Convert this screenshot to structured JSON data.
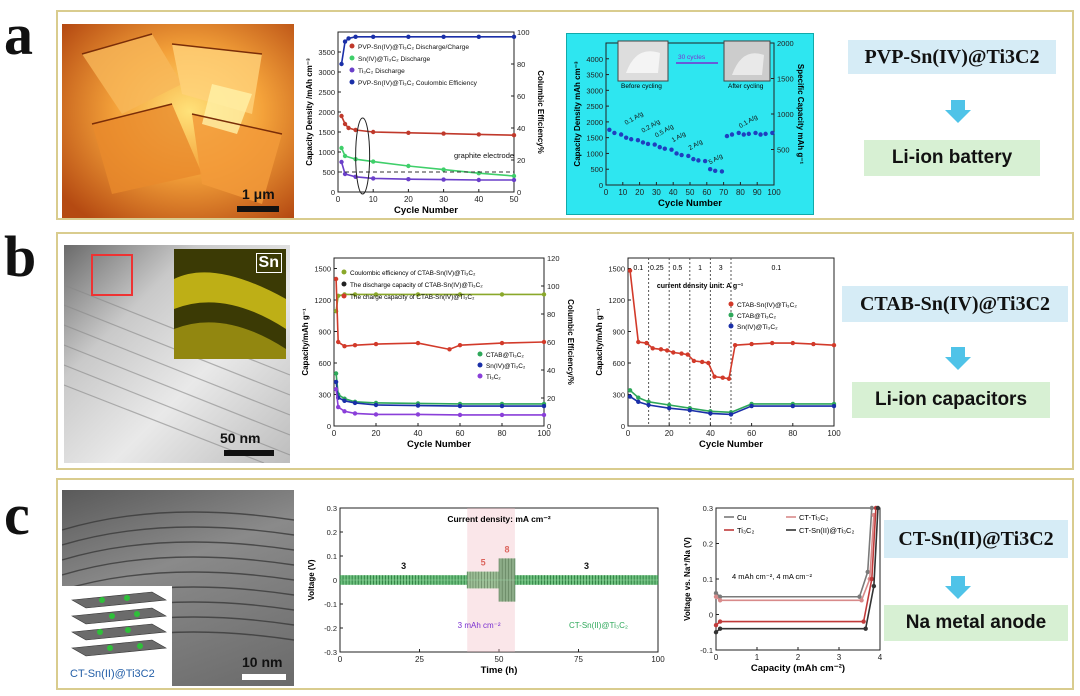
{
  "panel_a": {
    "label": "a",
    "scalebar": "1 μm",
    "caption": "PVP-Sn(IV)@Ti3C2",
    "application": "Li-ion battery"
  },
  "panel_b": {
    "label": "b",
    "scalebar": "50 nm",
    "eds_label": "Sn",
    "caption": "CTAB-Sn(IV)@Ti3C2",
    "application": "Li-ion capacitors"
  },
  "panel_c": {
    "label": "c",
    "scalebar": "10 nm",
    "schematic_label": "CT-Sn(II)@Ti3C2",
    "caption": "CT-Sn(II)@Ti3C2",
    "application": "Na metal anode"
  },
  "colors": {
    "frame": "#d9cc8e",
    "caption_bg": "#d6ecf6",
    "application_bg": "#d7f0d3",
    "inset_bg": "#2ee6f0"
  },
  "chart_data": [
    {
      "id": "a1",
      "type": "line",
      "xlabel": "Cycle Number",
      "ylabel": "Capacity Density /mAh cm⁻³",
      "y2label": "Columbic Efficiency%",
      "xlim": [
        0,
        50
      ],
      "ylim": [
        0,
        4000
      ],
      "y2lim": [
        0,
        100
      ],
      "xticks": [
        0,
        10,
        20,
        30,
        40,
        50
      ],
      "yticks": [
        0,
        500,
        1000,
        1500,
        2000,
        2500,
        3000,
        3500
      ],
      "y2ticks": [
        0,
        20,
        40,
        60,
        80,
        100
      ],
      "legend": [
        "PVP-Sn(IV)@Ti₃C₂ Discharge/Charge",
        "Sn(IV)@Ti₃C₂ Discharge",
        "Ti₃C₂ Discharge",
        "PVP-Sn(IV)@Ti₃C₂ Coulombic Efficiency"
      ],
      "annotations": [
        "graphite electrode"
      ],
      "series": [
        {
          "name": "PVP-Sn(IV)@Ti₃C₂ Coulombic Efficiency",
          "axis": "y2",
          "color": "#1a2fa8",
          "x": [
            1,
            2,
            3,
            5,
            10,
            20,
            30,
            40,
            50
          ],
          "y": [
            80,
            94,
            96,
            97,
            97,
            97,
            97,
            97,
            97
          ]
        },
        {
          "name": "PVP-Sn(IV)@Ti₃C₂ Discharge/Charge",
          "color": "#c0392b",
          "x": [
            1,
            2,
            3,
            5,
            10,
            20,
            30,
            40,
            50
          ],
          "y": [
            1900,
            1700,
            1600,
            1550,
            1500,
            1480,
            1460,
            1440,
            1420
          ]
        },
        {
          "name": "Sn(IV)@Ti₃C₂ Discharge",
          "color": "#3fcf6a",
          "x": [
            1,
            2,
            5,
            10,
            20,
            30,
            40,
            50
          ],
          "y": [
            1100,
            900,
            820,
            760,
            650,
            560,
            470,
            400
          ]
        },
        {
          "name": "Ti₃C₂ Discharge",
          "color": "#6a3fc9",
          "x": [
            1,
            2,
            5,
            10,
            20,
            30,
            40,
            50
          ],
          "y": [
            750,
            450,
            380,
            340,
            320,
            310,
            300,
            300
          ]
        }
      ],
      "reference": {
        "name": "graphite electrode",
        "y": 500
      }
    },
    {
      "id": "a2",
      "type": "scatter",
      "xlabel": "Cycle Number",
      "ylabel": "Capacity Density mAh cm⁻³",
      "y2label": "Specific Capacity mAh g⁻¹",
      "xlim": [
        0,
        100
      ],
      "ylim": [
        0,
        4500
      ],
      "y2lim": [
        0,
        2000
      ],
      "xticks": [
        0,
        10,
        20,
        30,
        40,
        50,
        60,
        70,
        80,
        90,
        100
      ],
      "yticks": [
        0,
        500,
        1000,
        1500,
        2000,
        2500,
        3000,
        3500,
        4000
      ],
      "y2ticks": [
        500,
        1000,
        1500,
        2000
      ],
      "rate_labels": [
        "0.1 A/g",
        "0.2 A/g",
        "0.5 A/g",
        "1 A/g",
        "2 A/g",
        "5 A/g",
        "0.1 A/g"
      ],
      "inset_labels": [
        "Before cycling",
        "After cycling",
        "30 cycles"
      ],
      "series": [
        {
          "name": "rate",
          "color": "#1f3fbf",
          "x": [
            2,
            5,
            9,
            12,
            15,
            19,
            22,
            25,
            29,
            32,
            35,
            39,
            42,
            45,
            49,
            52,
            55,
            59,
            62,
            65,
            69,
            72,
            75,
            79,
            82,
            85,
            89,
            92,
            95,
            99
          ],
          "y": [
            1750,
            1650,
            1600,
            1500,
            1450,
            1420,
            1350,
            1300,
            1280,
            1200,
            1150,
            1120,
            1000,
            950,
            920,
            820,
            780,
            760,
            500,
            450,
            430,
            1550,
            1600,
            1650,
            1600,
            1620,
            1650,
            1600,
            1620,
            1650
          ]
        }
      ]
    },
    {
      "id": "b1",
      "type": "line",
      "xlabel": "Cycle Number",
      "ylabel": "Capacity/mAh g⁻¹",
      "y2label": "Columbic Efficiency/%",
      "xlim": [
        0,
        100
      ],
      "ylim": [
        0,
        1600
      ],
      "y2lim": [
        0,
        120
      ],
      "xticks": [
        0,
        20,
        40,
        60,
        80,
        100
      ],
      "yticks": [
        0,
        300,
        600,
        900,
        1200,
        1500
      ],
      "y2ticks": [
        0,
        20,
        40,
        60,
        80,
        100,
        120
      ],
      "legend_top": [
        "Coulombic efficiency of CTAB-Sn(IV)@Ti₃C₂",
        "The discharge capacity of CTAB-Sn(IV)@Ti₃C₂",
        "The charge capacity of CTAB-Sn(IV)@Ti₃C₂"
      ],
      "legend_bottom": [
        "CTAB@Ti₃C₂",
        "Sn(IV)@Ti₃C₂",
        "Ti₃C₂"
      ],
      "series": [
        {
          "name": "Coulombic efficiency of CTAB-Sn(IV)@Ti₃C₂",
          "axis": "y2",
          "color": "#8aa82a",
          "x": [
            1,
            2,
            5,
            10,
            20,
            40,
            60,
            80,
            100
          ],
          "y": [
            82,
            93,
            94,
            94,
            94,
            94,
            94,
            94,
            94
          ]
        },
        {
          "name": "The discharge capacity of CTAB-Sn(IV)@Ti₃C₂",
          "color": "#d23a2a",
          "x": [
            1,
            2,
            5,
            10,
            20,
            40,
            55,
            60,
            80,
            100
          ],
          "y": [
            1400,
            800,
            760,
            770,
            780,
            790,
            730,
            770,
            790,
            800
          ]
        },
        {
          "name": "CTAB@Ti₃C₂",
          "color": "#2ea85a",
          "x": [
            1,
            2,
            5,
            10,
            20,
            40,
            60,
            80,
            100
          ],
          "y": [
            500,
            300,
            260,
            230,
            220,
            215,
            210,
            210,
            210
          ]
        },
        {
          "name": "Sn(IV)@Ti₃C₂",
          "color": "#1a2fa8",
          "x": [
            1,
            2,
            5,
            10,
            20,
            40,
            60,
            80,
            100
          ],
          "y": [
            420,
            270,
            240,
            220,
            200,
            195,
            190,
            190,
            190
          ]
        },
        {
          "name": "Ti₃C₂",
          "color": "#8a3fd9",
          "x": [
            1,
            2,
            5,
            10,
            20,
            40,
            60,
            80,
            100
          ],
          "y": [
            350,
            180,
            140,
            120,
            110,
            110,
            105,
            105,
            105
          ]
        }
      ]
    },
    {
      "id": "b2",
      "type": "scatter",
      "xlabel": "Cycle Number",
      "ylabel": "Capacity/mAh g⁻¹",
      "xlim": [
        0,
        100
      ],
      "ylim": [
        0,
        1600
      ],
      "xticks": [
        0,
        20,
        40,
        60,
        80,
        100
      ],
      "yticks": [
        0,
        300,
        600,
        900,
        1200,
        1500
      ],
      "rate_labels": [
        "0.1",
        "0.25",
        "0.5",
        "1",
        "3",
        "0.1"
      ],
      "unit_note": "current density unit: A g⁻¹",
      "legend": [
        "CTAB-Sn(IV)@Ti₃C₂",
        "CTAB@Ti₃C₂",
        "Sn(IV)@Ti₃C₂"
      ],
      "series": [
        {
          "name": "CTAB-Sn(IV)@Ti₃C₂",
          "color": "#d23a2a",
          "x": [
            1,
            5,
            9,
            12,
            16,
            19,
            22,
            26,
            29,
            32,
            36,
            39,
            42,
            46,
            49,
            52,
            60,
            70,
            80,
            90,
            100
          ],
          "y": [
            1480,
            800,
            790,
            740,
            730,
            720,
            700,
            690,
            680,
            620,
            610,
            600,
            470,
            460,
            450,
            770,
            780,
            790,
            790,
            780,
            770
          ]
        },
        {
          "name": "CTAB@Ti₃C₂",
          "color": "#2ea85a",
          "x": [
            1,
            5,
            10,
            20,
            30,
            40,
            50,
            60,
            80,
            100
          ],
          "y": [
            340,
            270,
            230,
            200,
            170,
            140,
            130,
            210,
            210,
            210
          ]
        },
        {
          "name": "Sn(IV)@Ti₃C₂",
          "color": "#1a2fa8",
          "x": [
            1,
            5,
            10,
            20,
            30,
            40,
            50,
            60,
            80,
            100
          ],
          "y": [
            280,
            230,
            200,
            170,
            150,
            120,
            110,
            190,
            190,
            190
          ]
        }
      ]
    },
    {
      "id": "c1",
      "type": "line",
      "xlabel": "Time (h)",
      "ylabel": "Voltage (V)",
      "xlim": [
        0,
        100
      ],
      "ylim": [
        -0.3,
        0.3
      ],
      "xticks": [
        0,
        25,
        50,
        75,
        100
      ],
      "yticks": [
        -0.3,
        -0.2,
        -0.1,
        0.0,
        0.1,
        0.2,
        0.3
      ],
      "title": "Current density: mA cm⁻²",
      "annotations": [
        "3 mAh cm⁻²",
        "CT-Sn(II)@Ti₃C₂"
      ],
      "segments": [
        {
          "label": "3",
          "x": [
            0,
            40
          ],
          "amp": 0.02
        },
        {
          "label": "5",
          "x": [
            40,
            50
          ],
          "amp": 0.035
        },
        {
          "label": "8",
          "x": [
            50,
            55
          ],
          "amp": 0.09
        },
        {
          "label": "3",
          "x": [
            55,
            100
          ],
          "amp": 0.02
        }
      ]
    },
    {
      "id": "c2",
      "type": "line",
      "xlabel": "Capacity (mAh cm⁻²)",
      "ylabel": "Voltage vs. Na⁺/Na (V)",
      "xlim": [
        0,
        4
      ],
      "ylim": [
        -0.1,
        0.3
      ],
      "xticks": [
        0,
        1,
        2,
        3,
        4
      ],
      "yticks": [
        -0.1,
        0.0,
        0.1,
        0.2,
        0.3
      ],
      "note": "4 mAh cm⁻², 4 mA cm⁻²",
      "legend": [
        "Cu",
        "CT-Ti₃C₂",
        "Ti₃C₂",
        "CT-Sn(II)@Ti₃C₂"
      ],
      "series": [
        {
          "name": "Cu",
          "color": "#7a7a7a",
          "x": [
            0,
            0.1,
            3.5,
            3.7,
            3.8
          ],
          "y": [
            0.06,
            0.05,
            0.05,
            0.12,
            0.3
          ]
        },
        {
          "name": "CT-Ti₃C₂",
          "color": "#d88a8a",
          "x": [
            0,
            0.1,
            3.55,
            3.75,
            3.85
          ],
          "y": [
            0.05,
            0.04,
            0.04,
            0.1,
            0.28
          ]
        },
        {
          "name": "Ti₃C₂",
          "color": "#c03a3a",
          "x": [
            0,
            0.1,
            3.6,
            3.8,
            3.9
          ],
          "y": [
            -0.03,
            -0.02,
            -0.02,
            0.1,
            0.3
          ]
        },
        {
          "name": "CT-Sn(II)@Ti₃C₂",
          "color": "#333333",
          "x": [
            0,
            0.1,
            3.65,
            3.85,
            3.95
          ],
          "y": [
            -0.05,
            -0.04,
            -0.04,
            0.08,
            0.3
          ]
        }
      ]
    }
  ]
}
